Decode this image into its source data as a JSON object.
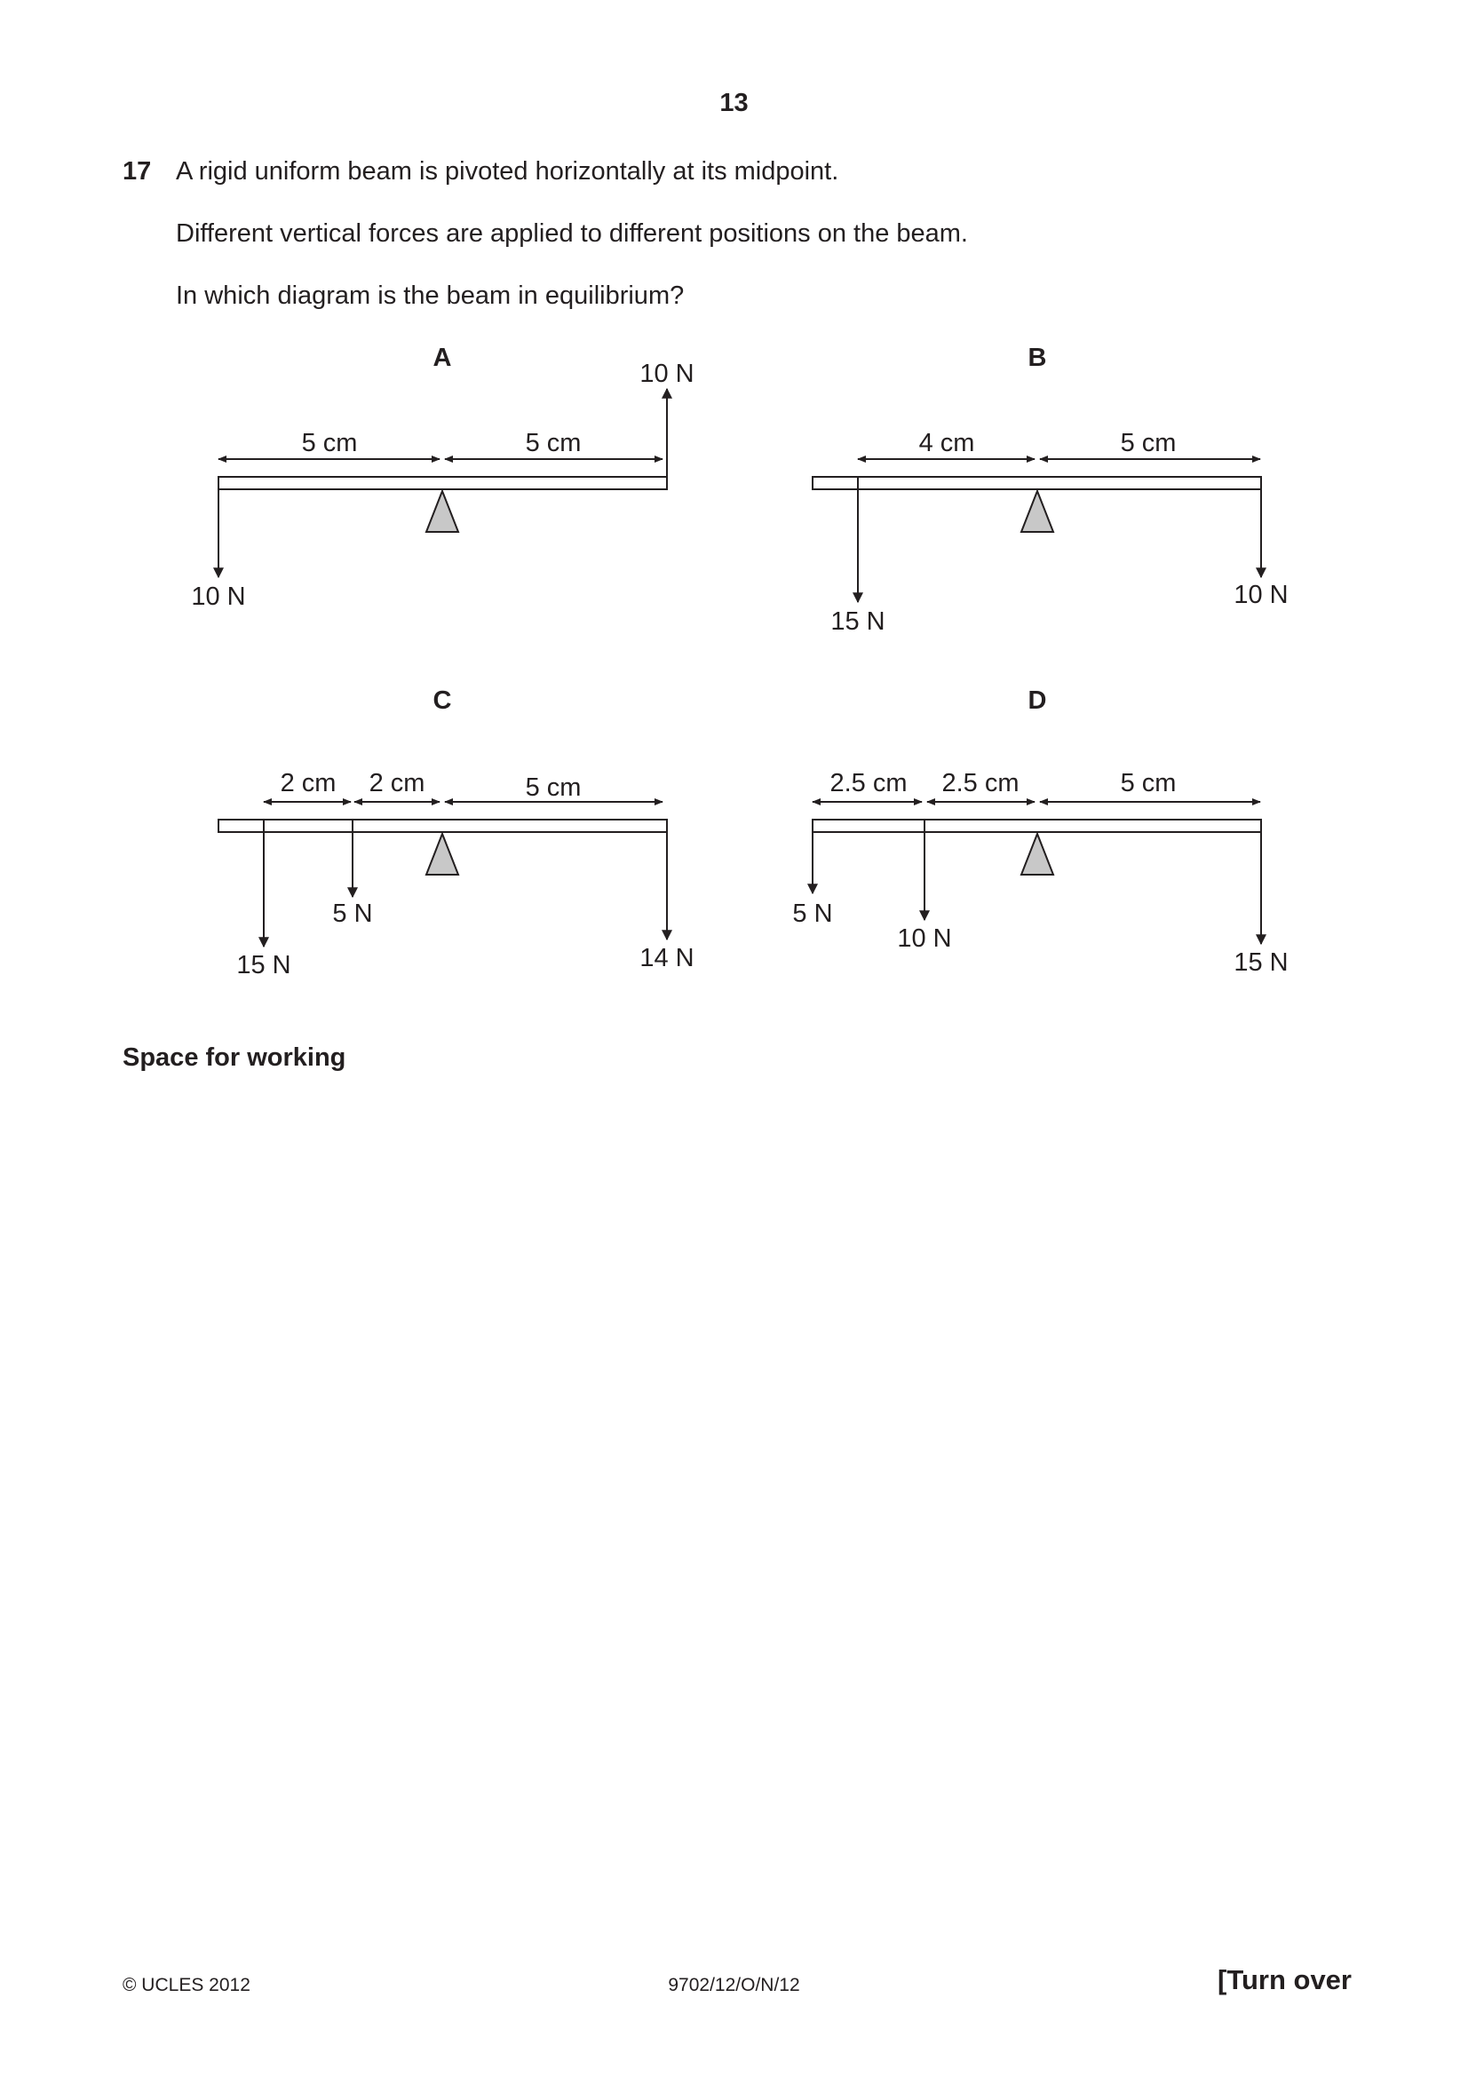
{
  "page": {
    "number": "13",
    "footer_left": "© UCLES 2012",
    "footer_code": "9702/12/O/N/12",
    "footer_right": "[Turn over"
  },
  "question": {
    "number": "17",
    "lines": [
      "A rigid uniform beam is pivoted horizontally at its midpoint.",
      "Different vertical forces are applied to different positions on the beam.",
      "In which diagram is the beam in equilibrium?"
    ]
  },
  "diagrams": {
    "A": {
      "label": "A",
      "distances": [
        "5 cm",
        "5 cm"
      ],
      "forces": [
        "10 N",
        "10 N"
      ]
    },
    "B": {
      "label": "B",
      "distances": [
        "4 cm",
        "5 cm"
      ],
      "forces": [
        "15 N",
        "10 N"
      ]
    },
    "C": {
      "label": "C",
      "distances": [
        "2 cm",
        "2 cm",
        "5 cm"
      ],
      "forces": [
        "15 N",
        "5 N",
        "14 N"
      ]
    },
    "D": {
      "label": "D",
      "distances": [
        "2.5 cm",
        "2.5 cm",
        "5 cm"
      ],
      "forces": [
        "5 N",
        "10 N",
        "15 N"
      ]
    }
  },
  "working": {
    "label": "Space for working"
  },
  "colors": {
    "pivot_fill": "#c8c8c8",
    "ink": "#231f20"
  }
}
